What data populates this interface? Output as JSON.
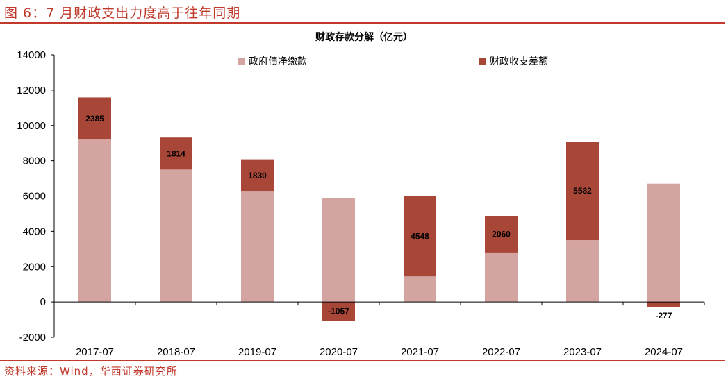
{
  "header": {
    "figure_title": "图 6：7 月财政支出力度高于往年同期"
  },
  "footer": {
    "source": "资料来源：Wind，华西证券研究所"
  },
  "colors": {
    "accent": "#c0392b",
    "series1": "#d4a5a0",
    "series2": "#a84637"
  },
  "chart_data": {
    "type": "bar",
    "stacked": true,
    "title": "财政存款分解（亿元）",
    "categories": [
      "2017-07",
      "2018-07",
      "2019-07",
      "2020-07",
      "2021-07",
      "2022-07",
      "2023-07",
      "2024-07"
    ],
    "series": [
      {
        "name": "政府债净缴款",
        "values": [
          9200,
          7500,
          6250,
          5900,
          1450,
          2800,
          3500,
          6700
        ]
      },
      {
        "name": "财政收支差额",
        "values": [
          2385,
          1814,
          1830,
          -1057,
          4548,
          2060,
          5582,
          -277
        ]
      }
    ],
    "data_labels": [
      "2385",
      "1814",
      "1830",
      "-1057",
      "4548",
      "2060",
      "5582",
      "-277"
    ],
    "yticks": [
      "14000",
      "12000",
      "10000",
      "8000",
      "6000",
      "4000",
      "2000",
      "0",
      "-2000"
    ],
    "ylim": [
      -2000,
      14000
    ],
    "xlabel": "",
    "ylabel": "",
    "legend_position": "top"
  }
}
